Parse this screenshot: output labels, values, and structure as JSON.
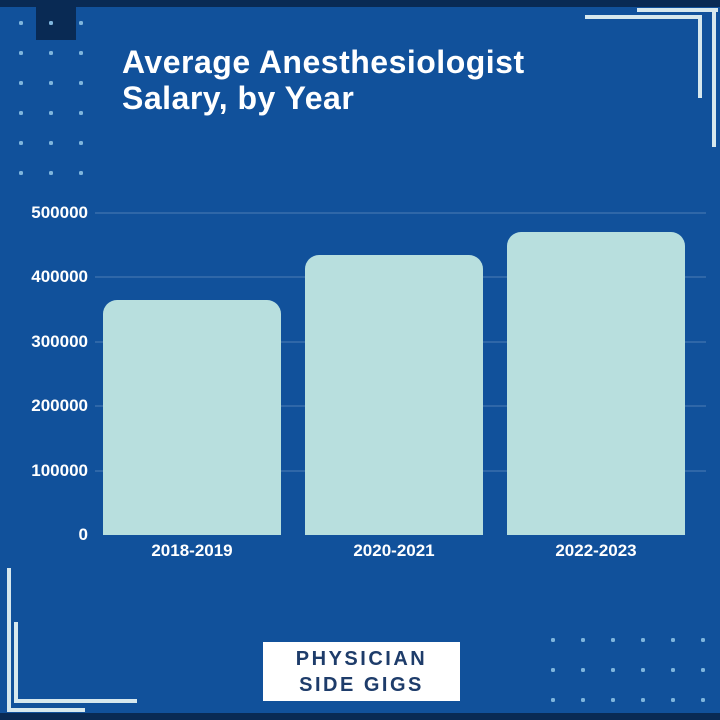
{
  "title": {
    "line1": "Average Anesthesiologist",
    "line2": "Salary, by Year"
  },
  "logo": {
    "line1": "PHYSICIAN",
    "line2": "SIDE GIGS"
  },
  "chart_data": {
    "type": "bar",
    "title": "Average Anesthesiologist Salary, by Year",
    "categories": [
      "2018-2019",
      "2020-2021",
      "2022-2023"
    ],
    "values": [
      365000,
      435000,
      470000
    ],
    "xlabel": "",
    "ylabel": "",
    "ylim": [
      0,
      500000
    ],
    "yticks": [
      0,
      100000,
      200000,
      300000,
      400000,
      500000
    ],
    "grid": true,
    "legend": "none",
    "bar_color": "#b8dfde"
  },
  "colors": {
    "background": "#11519b",
    "dark_navy": "#092a54",
    "bar_fill": "#b8dfde",
    "axis_text": "#ffffff",
    "title_text": "#ffffff",
    "logo_text": "#1e3c6a",
    "logo_background": "#ffffff",
    "bracket_line": "#d7e8ee",
    "dots": "#7fb5dc",
    "gridline": "rgba(255,255,255,0.13)"
  }
}
